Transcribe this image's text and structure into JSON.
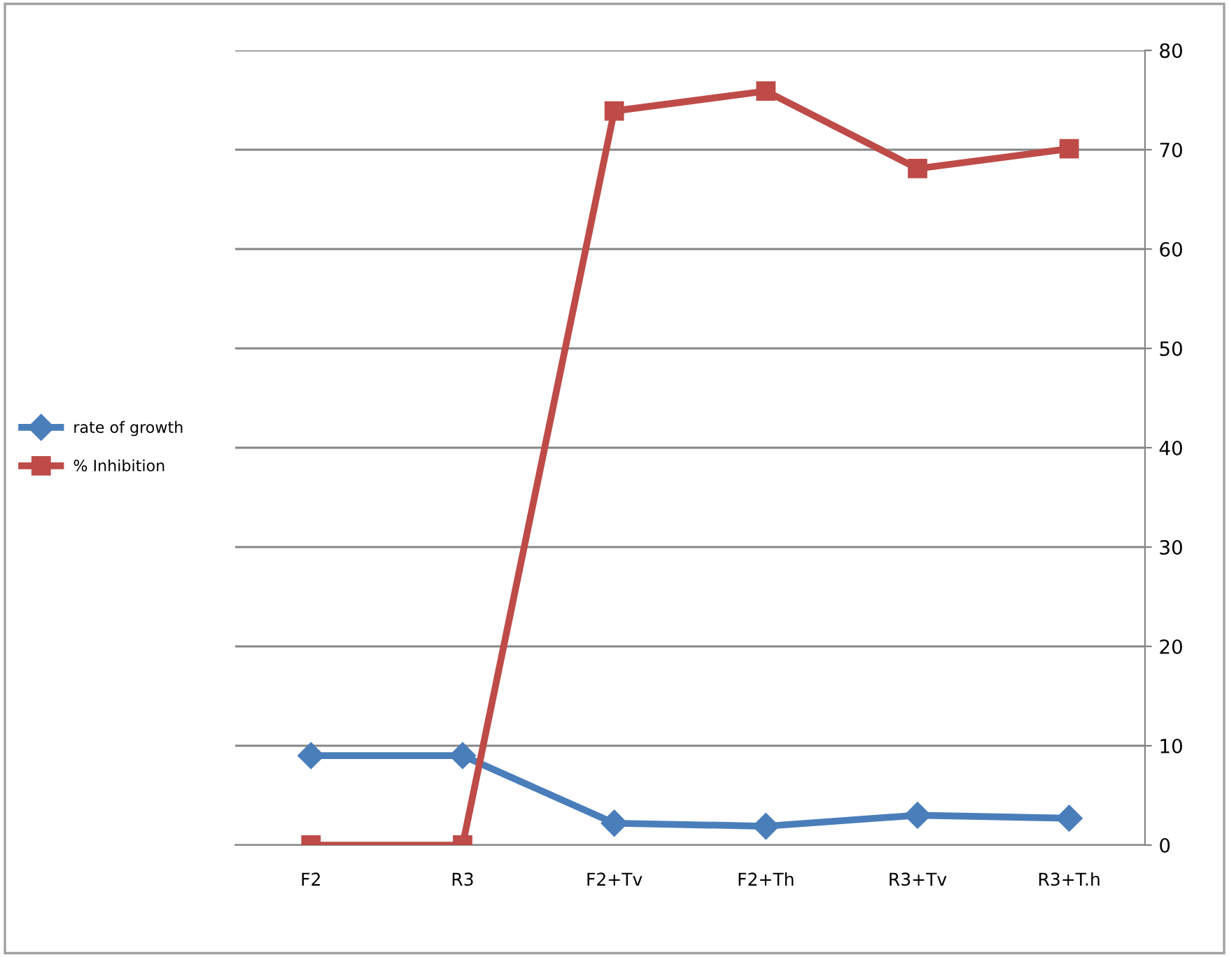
{
  "chart_data": {
    "type": "line",
    "categories": [
      "F2",
      "R3",
      "F2+Tv",
      "F2+Th",
      "R3+Tv",
      "R3+T.h"
    ],
    "series": [
      {
        "name": "rate of growth",
        "color": "#4a7ebb",
        "marker": "diamond",
        "values": [
          9,
          9,
          2.2,
          1.9,
          3.0,
          2.7
        ]
      },
      {
        "name": "% Inhibition",
        "color": "#be4b48",
        "marker": "square",
        "values": [
          0,
          0,
          73.9,
          75.9,
          68.1,
          70.1
        ]
      }
    ],
    "ylim": [
      0,
      80
    ],
    "yticks": [
      0,
      10,
      20,
      30,
      40,
      50,
      60,
      70,
      80
    ],
    "grid": "y",
    "legend": "left"
  }
}
